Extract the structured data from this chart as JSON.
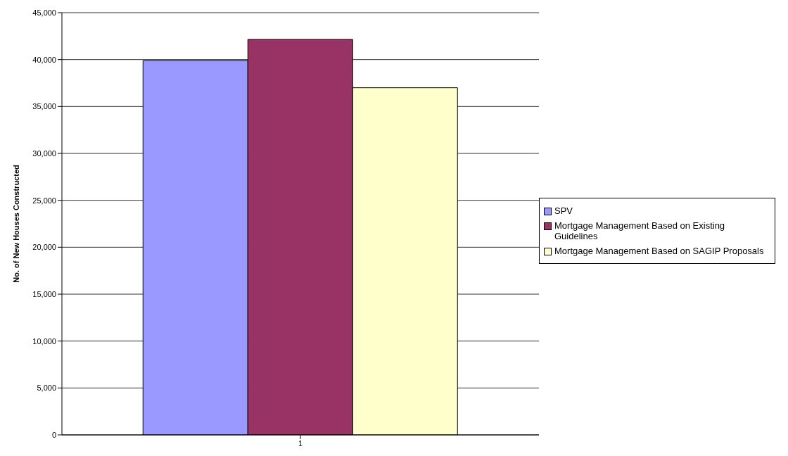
{
  "chart_data": {
    "type": "bar",
    "categories": [
      "1"
    ],
    "ylabel": "No. of New Houses Constructed",
    "series": [
      {
        "name": "SPV",
        "color": "#9999ff",
        "values": [
          39900
        ]
      },
      {
        "name": "Mortgage Management Based on Existing Guidelines",
        "color": "#993366",
        "values": [
          42150
        ]
      },
      {
        "name": "Mortgage Management Based on SAGIP Proposals",
        "color": "#ffffcc",
        "values": [
          37000
        ]
      }
    ],
    "ylim": [
      0,
      45000
    ],
    "yticks": [
      0,
      {
        "value": 5000,
        "label": "5,000"
      },
      {
        "value": 10000,
        "label": "10,000"
      },
      {
        "value": 15000,
        "label": "15,000"
      },
      {
        "value": 20000,
        "label": "20,000"
      },
      {
        "value": 25000,
        "label": "25,000"
      },
      {
        "value": 30000,
        "label": "30,000"
      },
      {
        "value": 35000,
        "label": "35,000"
      },
      {
        "value": 40000,
        "label": "40,000"
      },
      {
        "value": 45000,
        "label": "45,000"
      }
    ],
    "grid": "y",
    "legend": "right"
  }
}
